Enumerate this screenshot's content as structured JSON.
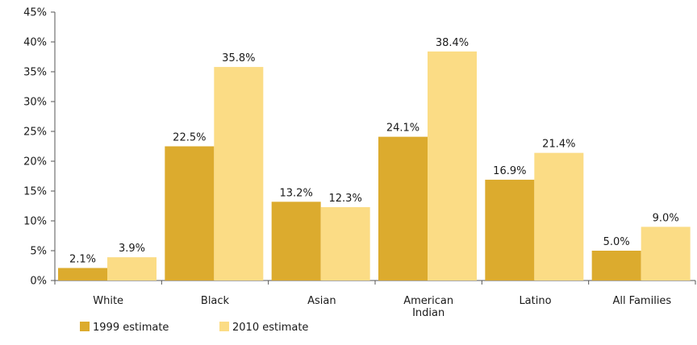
{
  "chart_data": {
    "type": "bar",
    "categories": [
      [
        "White"
      ],
      [
        "Black"
      ],
      [
        "Asian"
      ],
      [
        "American",
        "Indian"
      ],
      [
        "Latino"
      ],
      [
        "All Families"
      ]
    ],
    "series": [
      {
        "name": "1999 estimate",
        "color": "#dcab2e",
        "values": [
          2.1,
          22.5,
          13.2,
          24.1,
          16.9,
          5.0
        ],
        "labels": [
          "2.1%",
          "22.5%",
          "13.2%",
          "24.1%",
          "16.9%",
          "5.0%"
        ]
      },
      {
        "name": "2010 estimate",
        "color": "#fbdc85",
        "values": [
          3.9,
          35.8,
          12.3,
          38.4,
          21.4,
          9.0
        ],
        "labels": [
          "3.9%",
          "35.8%",
          "12.3%",
          "38.4%",
          "21.4%",
          "9.0%"
        ]
      }
    ],
    "ylim": [
      0,
      45
    ],
    "yticks": [
      0,
      5,
      10,
      15,
      20,
      25,
      30,
      35,
      40,
      45
    ],
    "ytick_labels": [
      "0%",
      "5%",
      "10%",
      "15%",
      "20%",
      "25%",
      "30%",
      "35%",
      "40%",
      "45%"
    ],
    "grid": false,
    "legend": "bottom-left"
  }
}
